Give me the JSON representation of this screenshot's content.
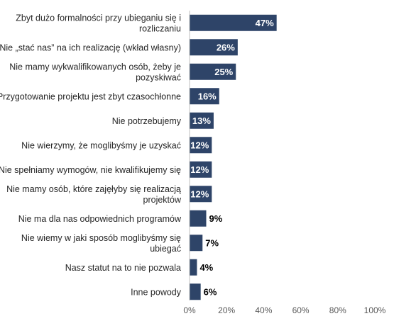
{
  "chart_data": {
    "type": "bar",
    "orientation": "horizontal",
    "categories": [
      "Zbyt dużo formalności przy ubieganiu się i rozliczaniu",
      "Nie „stać nas” na ich realizację (wkład własny)",
      "Nie mamy wykwalifikowanych osób, żeby je pozyskiwać",
      "Przygotowanie projektu jest zbyt czasochłonne",
      "Nie potrzebujemy",
      "Nie wierzymy, że moglibyśmy je uzyskać",
      "Nie spełniamy wymogów, nie kwalifikujemy się",
      "Nie mamy osób, które zajęłyby się realizacją projektów",
      "Nie ma dla nas odpowiednich programów",
      "Nie wiemy w jaki sposób moglibyśmy się ubiegać",
      "Nasz statut na to nie pozwala",
      "Inne powody"
    ],
    "category_lines": [
      [
        "Zbyt dużo formalności przy ubieganiu się i",
        "rozliczaniu"
      ],
      [
        "Nie „stać nas” na ich realizację (wkład własny)"
      ],
      [
        "Nie mamy wykwalifikowanych osób, żeby je",
        "pozyskiwać"
      ],
      [
        "Przygotowanie projektu jest zbyt czasochłonne"
      ],
      [
        "Nie potrzebujemy"
      ],
      [
        "Nie wierzymy, że moglibyśmy je uzyskać"
      ],
      [
        "Nie spełniamy wymogów, nie kwalifikujemy się"
      ],
      [
        "Nie mamy osób, które zajęłyby się realizacją",
        "projektów"
      ],
      [
        "Nie ma dla nas odpowiednich programów"
      ],
      [
        "Nie wiemy w jaki sposób moglibyśmy się",
        "ubiegać"
      ],
      [
        "Nasz statut na to nie pozwala"
      ],
      [
        "Inne powody"
      ]
    ],
    "values": [
      47,
      26,
      25,
      16,
      13,
      12,
      12,
      12,
      9,
      7,
      4,
      6
    ],
    "value_labels": [
      "47%",
      "26%",
      "25%",
      "16%",
      "13%",
      "12%",
      "12%",
      "12%",
      "9%",
      "7%",
      "4%",
      "6%"
    ],
    "xlim": [
      0,
      100
    ],
    "x_ticks": [
      0,
      20,
      40,
      60,
      80,
      100
    ],
    "x_tick_labels": [
      "0%",
      "20%",
      "40%",
      "60%",
      "80%",
      "100%"
    ],
    "grid": false,
    "legend": "none",
    "colors": {
      "bar": "#2e4468",
      "value_inside": "#ffffff",
      "value_outside": "#000000",
      "axis": "#bfbfbf"
    }
  }
}
